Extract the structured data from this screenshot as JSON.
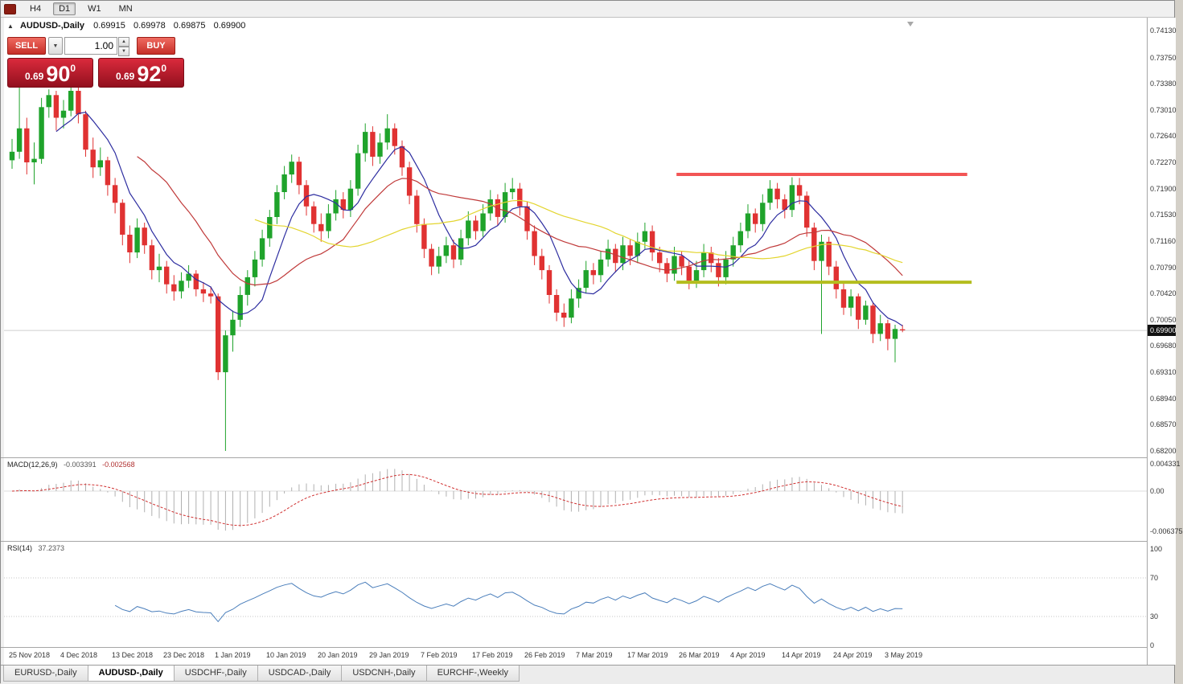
{
  "toolbar": {
    "timeframes": [
      {
        "label": "H4",
        "active": false
      },
      {
        "label": "D1",
        "active": true
      },
      {
        "label": "W1",
        "active": false
      },
      {
        "label": "MN",
        "active": false
      }
    ]
  },
  "icons": {
    "collapse": "▲",
    "dropdown_arrow": "▼",
    "spinner_up": "▲",
    "spinner_down": "▼"
  },
  "chart": {
    "title": {
      "symbol": "AUDUSD-,Daily",
      "open": "0.69915",
      "high": "0.69978",
      "low": "0.69875",
      "close": "0.69900"
    },
    "trade_panel": {
      "sell_label": "SELL",
      "buy_label": "BUY",
      "volume": "1.00",
      "sell_price_small": "0.69",
      "sell_price_big": "90",
      "sell_price_sup": "0",
      "buy_price_small": "0.69",
      "buy_price_big": "92",
      "buy_price_sup": "0"
    },
    "price_scale": [
      "0.74130",
      "0.73750",
      "0.73380",
      "0.73010",
      "0.72640",
      "0.72270",
      "0.71900",
      "0.71530",
      "0.71160",
      "0.70790",
      "0.70420",
      "0.70050",
      "0.69680",
      "0.69310",
      "0.68940",
      "0.68570",
      "0.68200"
    ],
    "current_price": "0.69900",
    "levels": {
      "resistance": {
        "price": 0.721,
        "from_bar": 90.3,
        "to_bar": 129.8,
        "color": "#f25555",
        "width": 4
      },
      "support": {
        "price": 0.7058,
        "from_bar": 90.3,
        "to_bar": 130.4,
        "color": "#b4bd1e",
        "width": 4
      }
    },
    "colors": {
      "bull": "#1fa32b",
      "bear": "#e03232",
      "ma_fast": "#2d2da0",
      "ma_mid": "#c03a3a",
      "ma_slow": "#e3d52f",
      "macd_hist": "#b0b0b0",
      "macd_signal": "#d03030",
      "rsi": "#4a7ebb",
      "bid_line": "#cfcfcf"
    }
  },
  "chart_data": {
    "type": "candlestick",
    "symbol": "AUDUSD",
    "timeframe": "Daily",
    "price_range": [
      0.682,
      0.7413
    ],
    "label_every_n_bars": 7,
    "x_labels": [
      "25 Nov 2018",
      "4 Dec 2018",
      "13 Dec 2018",
      "23 Dec 2018",
      "1 Jan 2019",
      "10 Jan 2019",
      "20 Jan 2019",
      "29 Jan 2019",
      "7 Feb 2019",
      "17 Feb 2019",
      "26 Feb 2019",
      "7 Mar 2019",
      "17 Mar 2019",
      "26 Mar 2019",
      "4 Apr 2019",
      "14 Apr 2019",
      "24 Apr 2019",
      "3 May 2019"
    ],
    "candles": [
      [
        0.723,
        0.726,
        0.7218,
        0.7242
      ],
      [
        0.7242,
        0.7337,
        0.7232,
        0.7275
      ],
      [
        0.7275,
        0.729,
        0.721,
        0.7227
      ],
      [
        0.7227,
        0.7255,
        0.7196,
        0.7232
      ],
      [
        0.7232,
        0.7318,
        0.7225,
        0.7305
      ],
      [
        0.7305,
        0.733,
        0.729,
        0.7322
      ],
      [
        0.7322,
        0.7328,
        0.7272,
        0.729
      ],
      [
        0.729,
        0.7315,
        0.7275,
        0.73
      ],
      [
        0.73,
        0.7337,
        0.7292,
        0.7328
      ],
      [
        0.7328,
        0.7335,
        0.7282,
        0.7295
      ],
      [
        0.7295,
        0.73,
        0.7235,
        0.7245
      ],
      [
        0.7245,
        0.7262,
        0.7205,
        0.722
      ],
      [
        0.722,
        0.7248,
        0.7208,
        0.723
      ],
      [
        0.723,
        0.7235,
        0.718,
        0.7195
      ],
      [
        0.7195,
        0.7205,
        0.7155,
        0.717
      ],
      [
        0.717,
        0.7175,
        0.711,
        0.7125
      ],
      [
        0.7125,
        0.7138,
        0.7085,
        0.71
      ],
      [
        0.71,
        0.7148,
        0.7092,
        0.7135
      ],
      [
        0.7135,
        0.7142,
        0.7098,
        0.711
      ],
      [
        0.711,
        0.7118,
        0.7062,
        0.7075
      ],
      [
        0.7075,
        0.7098,
        0.7058,
        0.708
      ],
      [
        0.708,
        0.7088,
        0.7042,
        0.7055
      ],
      [
        0.7055,
        0.7068,
        0.7032,
        0.7045
      ],
      [
        0.7045,
        0.7072,
        0.7035,
        0.706
      ],
      [
        0.706,
        0.7082,
        0.705,
        0.707
      ],
      [
        0.707,
        0.7075,
        0.7038,
        0.7048
      ],
      [
        0.7048,
        0.7058,
        0.703,
        0.7042
      ],
      [
        0.7042,
        0.7052,
        0.7028,
        0.7038
      ],
      [
        0.7038,
        0.7042,
        0.692,
        0.6931
      ],
      [
        0.6931,
        0.699,
        0.682,
        0.6983
      ],
      [
        0.6983,
        0.7018,
        0.696,
        0.7005
      ],
      [
        0.7005,
        0.7052,
        0.6995,
        0.704
      ],
      [
        0.704,
        0.7075,
        0.7025,
        0.7065
      ],
      [
        0.7065,
        0.7102,
        0.7052,
        0.709
      ],
      [
        0.709,
        0.7132,
        0.708,
        0.712
      ],
      [
        0.712,
        0.716,
        0.7108,
        0.715
      ],
      [
        0.715,
        0.7195,
        0.714,
        0.7185
      ],
      [
        0.7185,
        0.7222,
        0.7175,
        0.721
      ],
      [
        0.721,
        0.7238,
        0.7198,
        0.7228
      ],
      [
        0.7228,
        0.7235,
        0.7182,
        0.7195
      ],
      [
        0.7195,
        0.7202,
        0.7152,
        0.7165
      ],
      [
        0.7165,
        0.7172,
        0.7128,
        0.714
      ],
      [
        0.714,
        0.7155,
        0.7115,
        0.713
      ],
      [
        0.713,
        0.7168,
        0.712,
        0.7155
      ],
      [
        0.7155,
        0.7188,
        0.7145,
        0.7175
      ],
      [
        0.7175,
        0.7185,
        0.7148,
        0.716
      ],
      [
        0.716,
        0.7202,
        0.715,
        0.719
      ],
      [
        0.719,
        0.7252,
        0.718,
        0.724
      ],
      [
        0.724,
        0.7282,
        0.7228,
        0.727
      ],
      [
        0.727,
        0.7278,
        0.7222,
        0.7235
      ],
      [
        0.7235,
        0.7268,
        0.7225,
        0.7255
      ],
      [
        0.7255,
        0.7295,
        0.7245,
        0.7275
      ],
      [
        0.7275,
        0.7282,
        0.7238,
        0.725
      ],
      [
        0.725,
        0.7258,
        0.7208,
        0.722
      ],
      [
        0.722,
        0.7228,
        0.7168,
        0.718
      ],
      [
        0.718,
        0.7188,
        0.7128,
        0.714
      ],
      [
        0.714,
        0.7148,
        0.7092,
        0.7105
      ],
      [
        0.7105,
        0.7112,
        0.7068,
        0.708
      ],
      [
        0.708,
        0.7108,
        0.707,
        0.7095
      ],
      [
        0.7095,
        0.7122,
        0.7085,
        0.711
      ],
      [
        0.711,
        0.7118,
        0.7078,
        0.709
      ],
      [
        0.709,
        0.7132,
        0.7082,
        0.712
      ],
      [
        0.712,
        0.7158,
        0.711,
        0.7145
      ],
      [
        0.7145,
        0.7152,
        0.7118,
        0.713
      ],
      [
        0.713,
        0.7168,
        0.7122,
        0.7155
      ],
      [
        0.7155,
        0.7188,
        0.7145,
        0.7175
      ],
      [
        0.7175,
        0.7182,
        0.7138,
        0.715
      ],
      [
        0.715,
        0.7198,
        0.7142,
        0.7185
      ],
      [
        0.7185,
        0.7205,
        0.7175,
        0.719
      ],
      [
        0.719,
        0.7198,
        0.7152,
        0.7165
      ],
      [
        0.7165,
        0.7172,
        0.7118,
        0.713
      ],
      [
        0.713,
        0.7138,
        0.7082,
        0.7095
      ],
      [
        0.7095,
        0.7105,
        0.7062,
        0.7075
      ],
      [
        0.7075,
        0.7082,
        0.7028,
        0.704
      ],
      [
        0.704,
        0.7048,
        0.7003,
        0.7015
      ],
      [
        0.7015,
        0.7028,
        0.6995,
        0.7008
      ],
      [
        0.7008,
        0.7048,
        0.7,
        0.7035
      ],
      [
        0.7035,
        0.7062,
        0.7022,
        0.705
      ],
      [
        0.705,
        0.7088,
        0.7042,
        0.7075
      ],
      [
        0.7075,
        0.7085,
        0.7055,
        0.7068
      ],
      [
        0.7068,
        0.7102,
        0.7058,
        0.709
      ],
      [
        0.709,
        0.7118,
        0.708,
        0.7105
      ],
      [
        0.7105,
        0.7112,
        0.7072,
        0.7085
      ],
      [
        0.7085,
        0.7122,
        0.7075,
        0.711
      ],
      [
        0.711,
        0.7118,
        0.7082,
        0.7095
      ],
      [
        0.7095,
        0.7128,
        0.7085,
        0.7115
      ],
      [
        0.7115,
        0.7142,
        0.7105,
        0.713
      ],
      [
        0.713,
        0.7138,
        0.7088,
        0.71
      ],
      [
        0.71,
        0.7108,
        0.7072,
        0.7085
      ],
      [
        0.7085,
        0.7092,
        0.7058,
        0.707
      ],
      [
        0.707,
        0.7108,
        0.706,
        0.7095
      ],
      [
        0.7095,
        0.7102,
        0.7068,
        0.708
      ],
      [
        0.708,
        0.7088,
        0.7048,
        0.706
      ],
      [
        0.706,
        0.7088,
        0.705,
        0.7075
      ],
      [
        0.7075,
        0.7112,
        0.7065,
        0.71
      ],
      [
        0.71,
        0.7108,
        0.7072,
        0.7085
      ],
      [
        0.7085,
        0.7092,
        0.7052,
        0.7065
      ],
      [
        0.7065,
        0.7102,
        0.7055,
        0.709
      ],
      [
        0.709,
        0.7122,
        0.708,
        0.711
      ],
      [
        0.711,
        0.7142,
        0.71,
        0.713
      ],
      [
        0.713,
        0.7168,
        0.712,
        0.7155
      ],
      [
        0.7155,
        0.7162,
        0.7128,
        0.714
      ],
      [
        0.714,
        0.7182,
        0.713,
        0.717
      ],
      [
        0.717,
        0.7202,
        0.716,
        0.719
      ],
      [
        0.719,
        0.7198,
        0.7162,
        0.7175
      ],
      [
        0.7175,
        0.7182,
        0.7148,
        0.716
      ],
      [
        0.716,
        0.7206,
        0.715,
        0.7195
      ],
      [
        0.7195,
        0.7205,
        0.7168,
        0.718
      ],
      [
        0.718,
        0.7186,
        0.7122,
        0.7135
      ],
      [
        0.7135,
        0.7142,
        0.7075,
        0.7088
      ],
      [
        0.7088,
        0.7125,
        0.6985,
        0.7115
      ],
      [
        0.7115,
        0.7122,
        0.7068,
        0.708
      ],
      [
        0.708,
        0.7088,
        0.7035,
        0.7048
      ],
      [
        0.7048,
        0.7058,
        0.7012,
        0.7022
      ],
      [
        0.7022,
        0.7048,
        0.701,
        0.7038
      ],
      [
        0.7038,
        0.7042,
        0.6992,
        0.7005
      ],
      [
        0.7005,
        0.7032,
        0.6998,
        0.7025
      ],
      [
        0.7025,
        0.703,
        0.6972,
        0.6985
      ],
      [
        0.6985,
        0.7012,
        0.6975,
        0.7
      ],
      [
        0.7,
        0.7005,
        0.6962,
        0.6978
      ],
      [
        0.6978,
        0.6998,
        0.6945,
        0.6992
      ],
      [
        0.69915,
        0.69978,
        0.69875,
        0.699
      ]
    ],
    "moving_averages": [
      {
        "period": 7,
        "color_key": "ma_fast"
      },
      {
        "period": 18,
        "color_key": "ma_mid"
      },
      {
        "period": 34,
        "color_key": "ma_slow"
      }
    ],
    "indicators": {
      "macd": {
        "name": "MACD(12,26,9)",
        "value_main": "-0.003391",
        "value_signal": "-0.002568",
        "fast": 12,
        "slow": 26,
        "signal": 9,
        "scale_labels": [
          "0.004331",
          "0.00",
          "-0.006375"
        ]
      },
      "rsi": {
        "name": "RSI(14)",
        "value": "37.2373",
        "period": 14,
        "levels": [
          70,
          30
        ],
        "scale_labels": [
          "100",
          "70",
          "30",
          "0"
        ]
      }
    }
  },
  "tabs": [
    {
      "label": "EURUSD-,Daily",
      "active": false
    },
    {
      "label": "AUDUSD-,Daily",
      "active": true
    },
    {
      "label": "USDCHF-,Daily",
      "active": false
    },
    {
      "label": "USDCAD-,Daily",
      "active": false
    },
    {
      "label": "USDCNH-,Daily",
      "active": false
    },
    {
      "label": "EURCHF-,Weekly",
      "active": false
    }
  ]
}
